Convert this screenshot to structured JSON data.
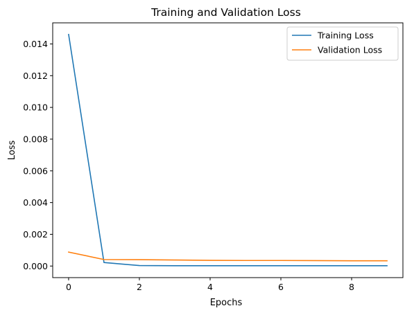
{
  "chart_data": {
    "type": "line",
    "title": "Training and Validation Loss",
    "xlabel": "Epochs",
    "ylabel": "Loss",
    "x": [
      0,
      1,
      2,
      3,
      4,
      5,
      6,
      7,
      8,
      9
    ],
    "xlim": [
      -0.45,
      9.45
    ],
    "ylim": [
      -0.00073,
      0.01533
    ],
    "x_ticks": [
      0,
      2,
      4,
      6,
      8
    ],
    "x_tick_labels": [
      "0",
      "2",
      "4",
      "6",
      "8"
    ],
    "y_ticks": [
      0.0,
      0.002,
      0.004,
      0.006,
      0.008,
      0.01,
      0.012,
      0.014
    ],
    "y_tick_labels": [
      "0.000",
      "0.002",
      "0.004",
      "0.006",
      "0.008",
      "0.010",
      "0.012",
      "0.014"
    ],
    "grid": false,
    "legend_position": "top-right",
    "series": [
      {
        "name": "Training Loss",
        "color": "#1f77b4",
        "values": [
          0.0146,
          0.00022,
          3e-05,
          2e-05,
          2e-05,
          2e-05,
          2e-05,
          2e-05,
          2e-05,
          2e-05
        ]
      },
      {
        "name": "Validation Loss",
        "color": "#ff7f0e",
        "values": [
          0.00088,
          0.00041,
          0.0004,
          0.00038,
          0.00036,
          0.00035,
          0.00035,
          0.00034,
          0.00033,
          0.00033
        ]
      }
    ]
  }
}
